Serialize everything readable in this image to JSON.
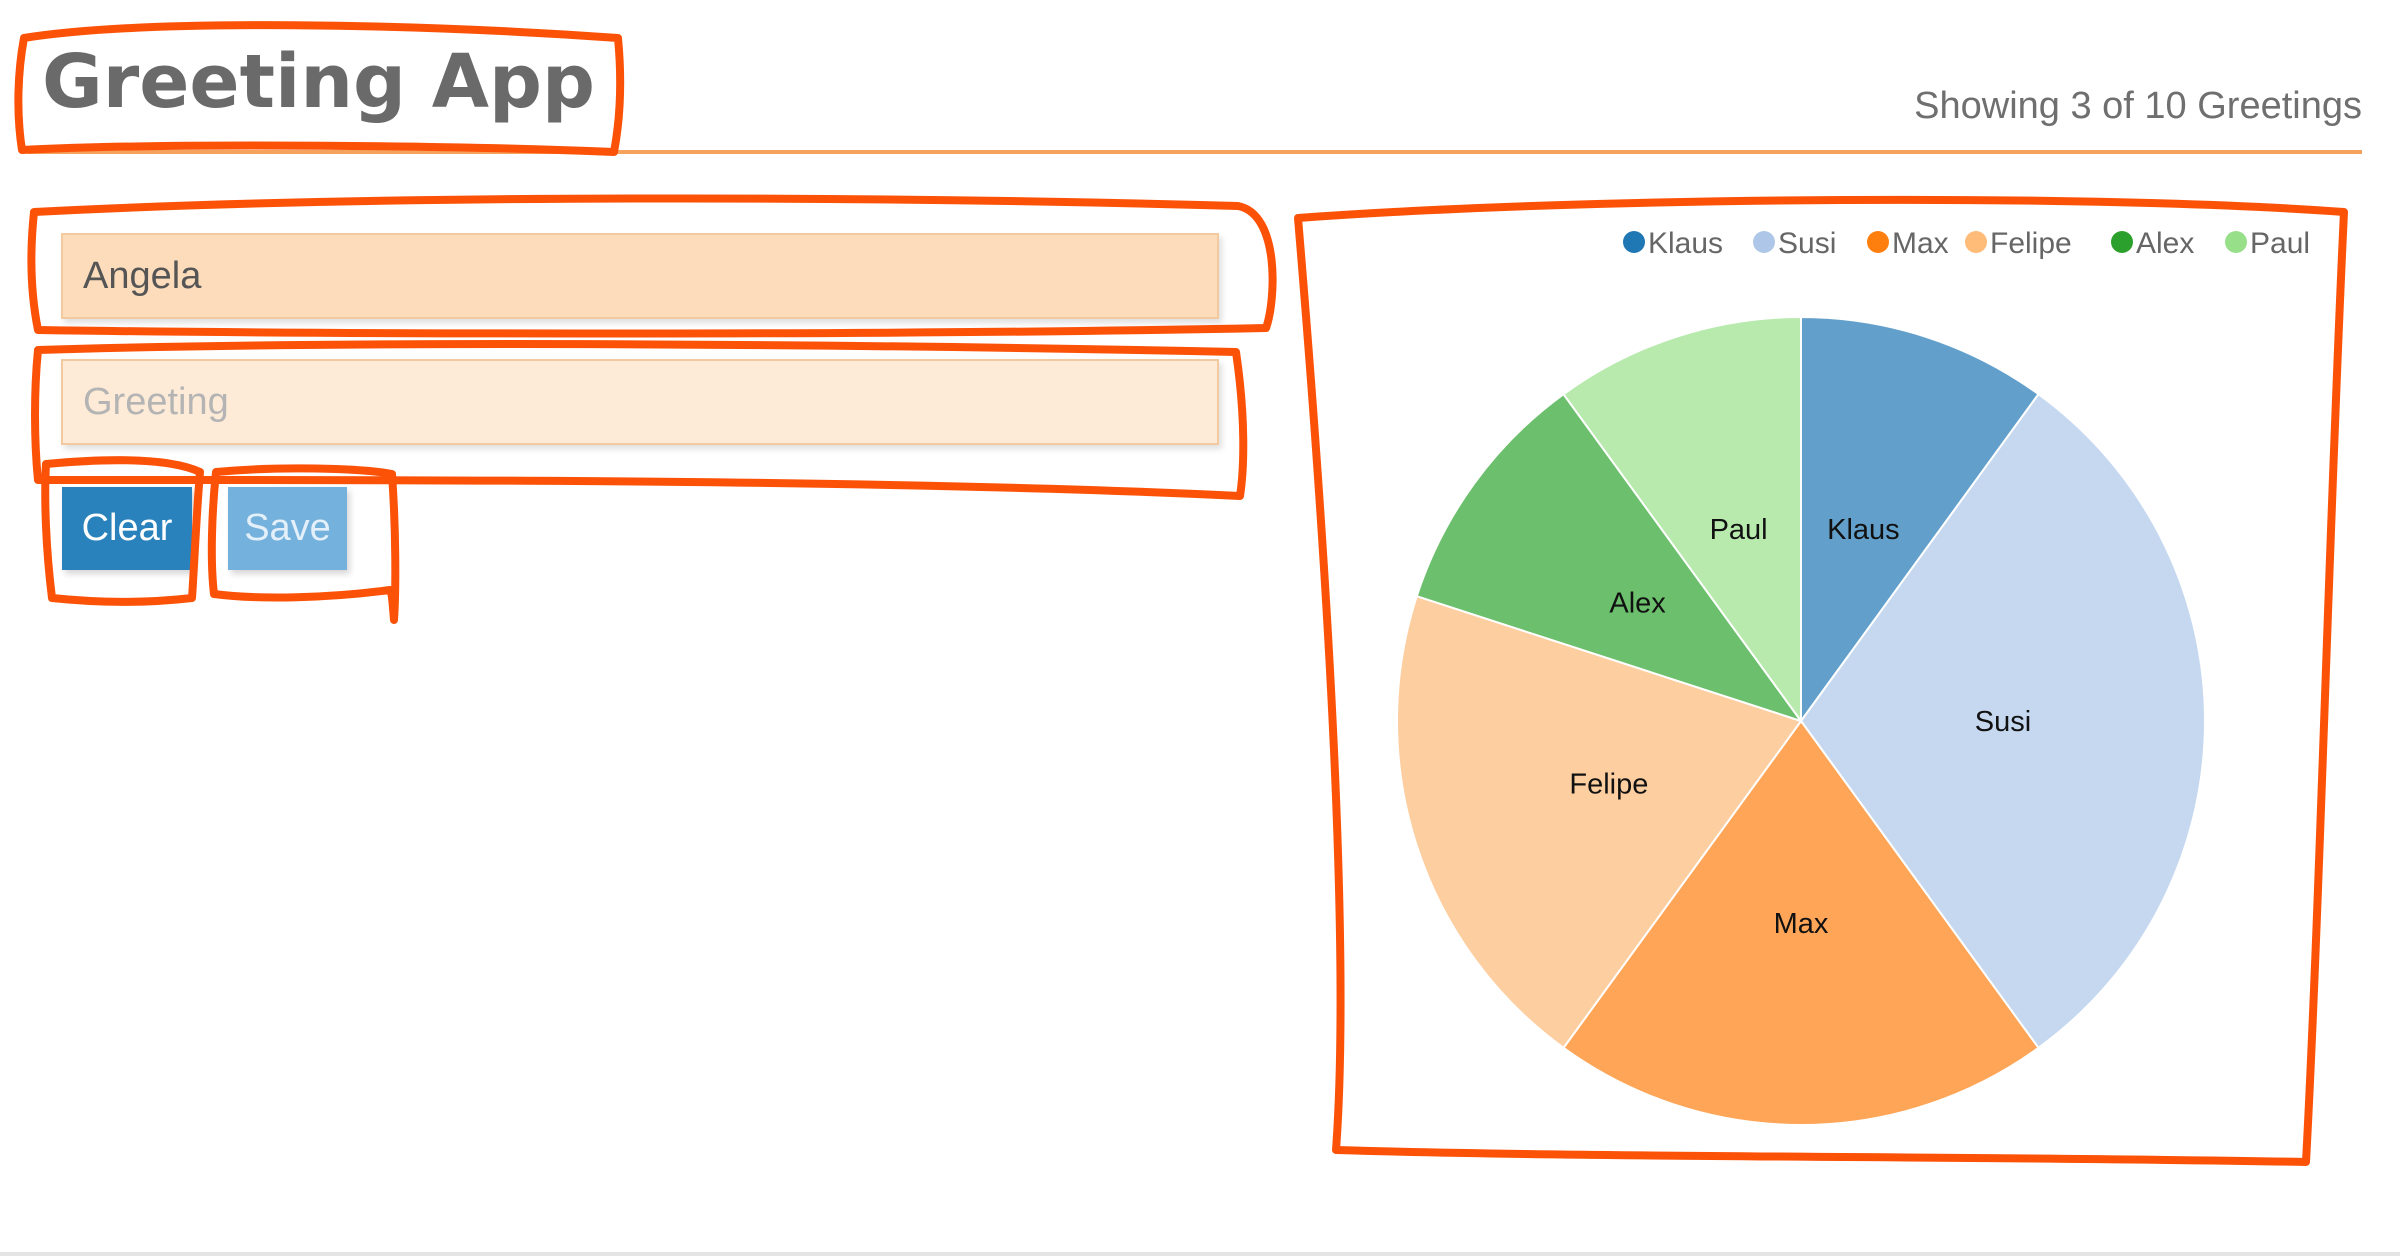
{
  "header": {
    "title": "Greeting App",
    "count_text": "Showing 3 of 10 Greetings"
  },
  "form": {
    "name_value": "Angela",
    "greeting_value": "",
    "greeting_placeholder": "Greeting",
    "clear_label": "Clear",
    "save_label": "Save"
  },
  "colors": {
    "accent": "#f5a25f",
    "clear_button": "#2a82bd",
    "save_button": "#74b1dc"
  },
  "chart_data": {
    "type": "pie",
    "title": "",
    "legend_position": "top-right",
    "categories": [
      "Klaus",
      "Susi",
      "Max",
      "Felipe",
      "Alex",
      "Paul"
    ],
    "values": [
      1,
      3,
      2,
      2,
      1,
      1
    ],
    "colors": [
      "#1f77b4",
      "#aec7e8",
      "#ff7f0e",
      "#ffbb78",
      "#2ca02c",
      "#98df8a"
    ],
    "slice_colors": [
      "#62a0cb",
      "#c5d8f0",
      "#fea557",
      "#fdcea0",
      "#6cbf6c",
      "#b8eaae"
    ]
  }
}
